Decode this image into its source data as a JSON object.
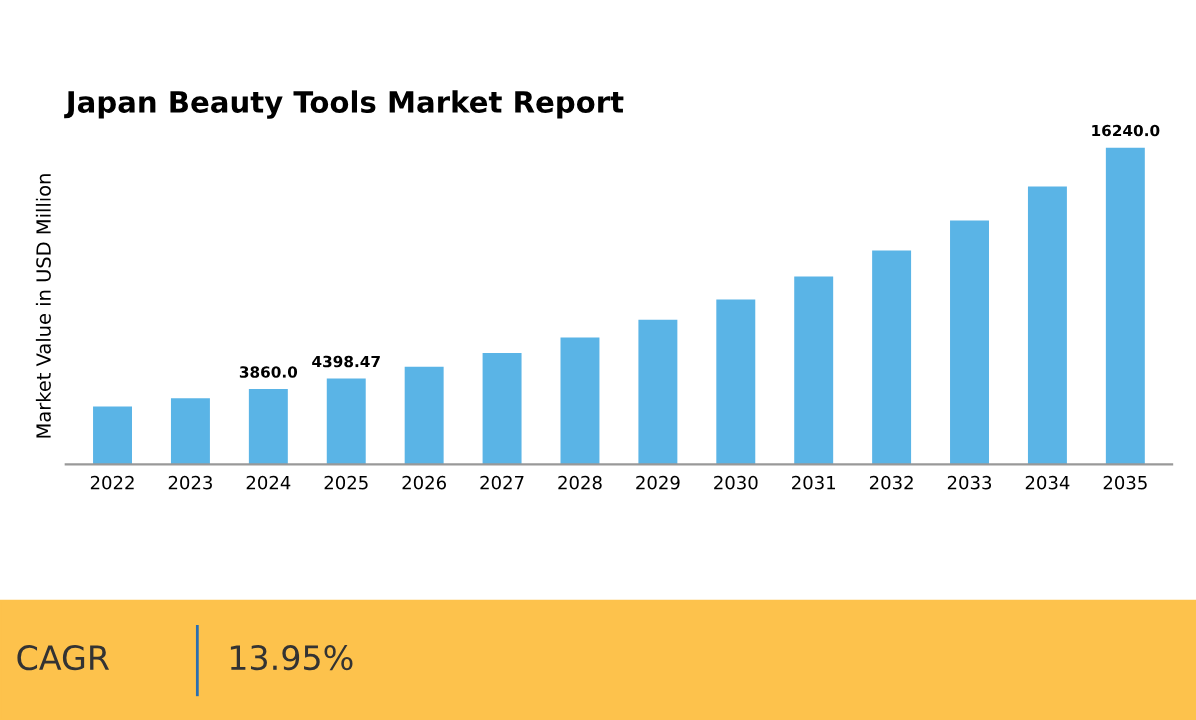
{
  "chart_data": {
    "type": "bar",
    "title": "Japan Beauty Tools Market Report",
    "ylabel": "Market Value in USD Million",
    "categories": [
      "2022",
      "2023",
      "2024",
      "2025",
      "2026",
      "2027",
      "2028",
      "2029",
      "2030",
      "2031",
      "2032",
      "2033",
      "2034",
      "2035"
    ],
    "values": [
      2970,
      3390,
      3860,
      4398.47,
      5010,
      5710,
      6510,
      7420,
      8450,
      9630,
      10970,
      12500,
      14250,
      16240
    ],
    "value_labels": [
      null,
      null,
      "3860.0",
      "4398.47",
      null,
      null,
      null,
      null,
      null,
      null,
      null,
      null,
      null,
      "16240.0"
    ],
    "color": "#5ab4e6",
    "annotations": [
      "CAGR",
      "13.95%"
    ],
    "grid": false,
    "legend": false
  }
}
